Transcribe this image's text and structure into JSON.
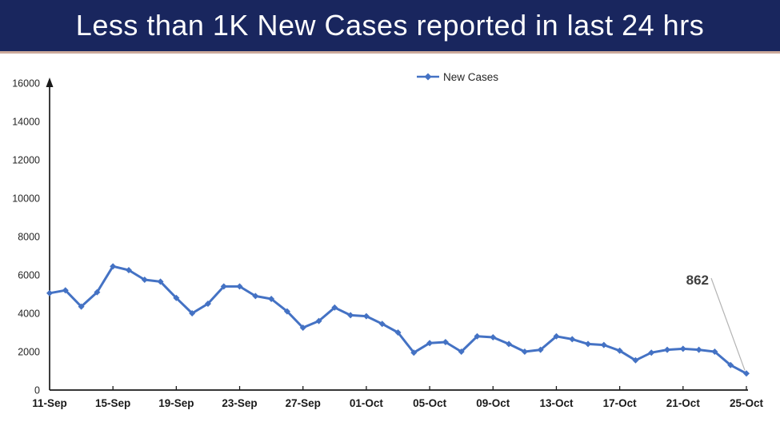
{
  "header": {
    "title": "Less than 1K New Cases reported in last 24 hrs",
    "background_color": "#19265E",
    "underline_color": "#CBA99B"
  },
  "chart_data": {
    "type": "line",
    "title": "Less than 1K New Cases reported in last 24 hrs",
    "legend_entries": [
      "New Cases"
    ],
    "legend_position": "top-center",
    "grid": false,
    "xlabel": "",
    "ylabel": "",
    "ylim": [
      0,
      16000
    ],
    "y_ticks": [
      0,
      2000,
      4000,
      6000,
      8000,
      10000,
      12000,
      14000,
      16000
    ],
    "x_tick_step": 4,
    "x_tick_labels_visible": [
      "11-Sep",
      "15-Sep",
      "19-Sep",
      "23-Sep",
      "27-Sep",
      "01-Oct",
      "05-Oct",
      "09-Oct",
      "13-Oct",
      "17-Oct",
      "21-Oct",
      "25-Oct"
    ],
    "x_labels": [
      "11-Sep",
      "12-Sep",
      "13-Sep",
      "14-Sep",
      "15-Sep",
      "16-Sep",
      "17-Sep",
      "18-Sep",
      "19-Sep",
      "20-Sep",
      "21-Sep",
      "22-Sep",
      "23-Sep",
      "24-Sep",
      "25-Sep",
      "26-Sep",
      "27-Sep",
      "28-Sep",
      "29-Sep",
      "30-Sep",
      "01-Oct",
      "02-Oct",
      "03-Oct",
      "04-Oct",
      "05-Oct",
      "06-Oct",
      "07-Oct",
      "08-Oct",
      "09-Oct",
      "10-Oct",
      "11-Oct",
      "12-Oct",
      "13-Oct",
      "14-Oct",
      "15-Oct",
      "16-Oct",
      "17-Oct",
      "18-Oct",
      "19-Oct",
      "20-Oct",
      "21-Oct",
      "22-Oct",
      "23-Oct",
      "24-Oct",
      "25-Oct"
    ],
    "series": [
      {
        "name": "New Cases",
        "color": "#4472C4",
        "values": [
          5050,
          5200,
          4350,
          5100,
          6450,
          6250,
          5750,
          5650,
          4800,
          4000,
          4500,
          5400,
          5400,
          4900,
          4750,
          4100,
          3250,
          3600,
          4300,
          3900,
          3850,
          3450,
          3000,
          1950,
          2450,
          2500,
          2000,
          2800,
          2750,
          2400,
          2000,
          2100,
          2800,
          2650,
          2400,
          2350,
          2050,
          1550,
          1950,
          2100,
          2150,
          2100,
          2000,
          1300,
          862
        ]
      }
    ],
    "annotation": {
      "text": "862",
      "point_index": 44,
      "color": "#3F3F3F",
      "leader_line_color": "#B3B3B3"
    },
    "axis_color": "#1a1a1a"
  }
}
